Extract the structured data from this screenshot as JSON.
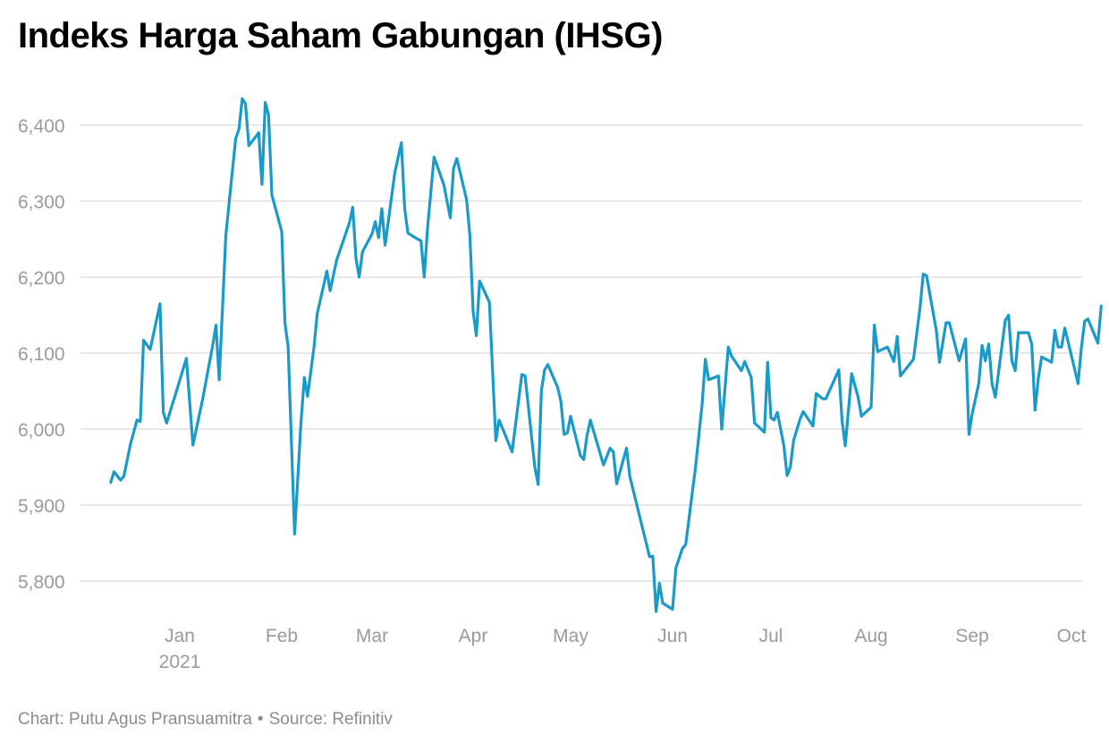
{
  "title": "Indeks Harga Saham Gabungan (IHSG)",
  "footer": {
    "chart_by": "Chart: Putu Agus Pransuamitra",
    "separator": "•",
    "source": "Source: Refinitiv"
  },
  "colors": {
    "line": "#1a9ac9",
    "grid": "#e0e0e0",
    "tick_text": "#9a9a9a"
  },
  "chart_data": {
    "type": "line",
    "title": "Indeks Harga Saham Gabungan (IHSG)",
    "xlabel": "",
    "ylabel": "",
    "ylim": [
      5755,
      6440
    ],
    "grid": true,
    "y_ticks": [
      5800,
      5900,
      6000,
      6100,
      6200,
      6300,
      6400
    ],
    "y_tick_labels": [
      "5,800",
      "5,900",
      "6,000",
      "6,100",
      "6,200",
      "6,300",
      "6,400"
    ],
    "x_ticks": [
      {
        "date": "2021-01-01",
        "label": "Jan",
        "sublabel": "2021"
      },
      {
        "date": "2021-02-01",
        "label": "Feb"
      },
      {
        "date": "2021-03-01",
        "label": "Mar"
      },
      {
        "date": "2021-04-01",
        "label": "Apr"
      },
      {
        "date": "2021-05-01",
        "label": "May"
      },
      {
        "date": "2021-06-01",
        "label": "Jun"
      },
      {
        "date": "2021-07-01",
        "label": "Jul"
      },
      {
        "date": "2021-08-01",
        "label": "Aug"
      },
      {
        "date": "2021-09-01",
        "label": "Sep"
      },
      {
        "date": "2021-10-01",
        "label": "Oct"
      }
    ],
    "series": [
      {
        "values": [
          [
            "2020-12-11",
            5930
          ],
          [
            "2020-12-12",
            5944
          ],
          [
            "2020-12-14",
            5933
          ],
          [
            "2020-12-15",
            5938
          ],
          [
            "2020-12-17",
            5980
          ],
          [
            "2020-12-19",
            6012
          ],
          [
            "2020-12-20",
            6010
          ],
          [
            "2020-12-21",
            6117
          ],
          [
            "2020-12-23",
            6105
          ],
          [
            "2020-12-24",
            6125
          ],
          [
            "2020-12-26",
            6165
          ],
          [
            "2020-12-27",
            6022
          ],
          [
            "2020-12-28",
            6008
          ],
          [
            "2020-12-31",
            6050
          ],
          [
            "2021-01-03",
            6093
          ],
          [
            "2021-01-05",
            5979
          ],
          [
            "2021-01-08",
            6040
          ],
          [
            "2021-01-11",
            6110
          ],
          [
            "2021-01-12",
            6137
          ],
          [
            "2021-01-13",
            6065
          ],
          [
            "2021-01-15",
            6255
          ],
          [
            "2021-01-18",
            6382
          ],
          [
            "2021-01-19",
            6395
          ],
          [
            "2021-01-20",
            6435
          ],
          [
            "2021-01-21",
            6428
          ],
          [
            "2021-01-22",
            6373
          ],
          [
            "2021-01-25",
            6390
          ],
          [
            "2021-01-26",
            6322
          ],
          [
            "2021-01-27",
            6430
          ],
          [
            "2021-01-28",
            6413
          ],
          [
            "2021-01-29",
            6308
          ],
          [
            "2021-02-01",
            6260
          ],
          [
            "2021-02-02",
            6140
          ],
          [
            "2021-02-03",
            6108
          ],
          [
            "2021-02-05",
            5862
          ],
          [
            "2021-02-07",
            6010
          ],
          [
            "2021-02-08",
            6068
          ],
          [
            "2021-02-09",
            6043
          ],
          [
            "2021-02-11",
            6108
          ],
          [
            "2021-02-12",
            6152
          ],
          [
            "2021-02-15",
            6208
          ],
          [
            "2021-02-16",
            6182
          ],
          [
            "2021-02-18",
            6222
          ],
          [
            "2021-02-22",
            6272
          ],
          [
            "2021-02-23",
            6292
          ],
          [
            "2021-02-24",
            6225
          ],
          [
            "2021-02-25",
            6200
          ],
          [
            "2021-02-26",
            6233
          ],
          [
            "2021-03-01",
            6257
          ],
          [
            "2021-03-02",
            6273
          ],
          [
            "2021-03-03",
            6252
          ],
          [
            "2021-03-04",
            6290
          ],
          [
            "2021-03-05",
            6242
          ],
          [
            "2021-03-08",
            6338
          ],
          [
            "2021-03-10",
            6377
          ],
          [
            "2021-03-11",
            6290
          ],
          [
            "2021-03-12",
            6258
          ],
          [
            "2021-03-15",
            6250
          ],
          [
            "2021-03-16",
            6248
          ],
          [
            "2021-03-17",
            6200
          ],
          [
            "2021-03-18",
            6264
          ],
          [
            "2021-03-20",
            6358
          ],
          [
            "2021-03-23",
            6322
          ],
          [
            "2021-03-24",
            6300
          ],
          [
            "2021-03-25",
            6278
          ],
          [
            "2021-03-26",
            6343
          ],
          [
            "2021-03-27",
            6356
          ],
          [
            "2021-03-30",
            6302
          ],
          [
            "2021-03-31",
            6255
          ],
          [
            "2021-04-01",
            6155
          ],
          [
            "2021-04-02",
            6123
          ],
          [
            "2021-04-03",
            6195
          ],
          [
            "2021-04-06",
            6167
          ],
          [
            "2021-04-08",
            5985
          ],
          [
            "2021-04-09",
            6012
          ],
          [
            "2021-04-13",
            5970
          ],
          [
            "2021-04-16",
            6072
          ],
          [
            "2021-04-17",
            6070
          ],
          [
            "2021-04-20",
            5950
          ],
          [
            "2021-04-21",
            5927
          ],
          [
            "2021-04-22",
            6050
          ],
          [
            "2021-04-23",
            6078
          ],
          [
            "2021-04-24",
            6085
          ],
          [
            "2021-04-27",
            6055
          ],
          [
            "2021-04-28",
            6037
          ],
          [
            "2021-04-29",
            5993
          ],
          [
            "2021-04-30",
            5995
          ],
          [
            "2021-05-01",
            6017
          ],
          [
            "2021-05-04",
            5965
          ],
          [
            "2021-05-05",
            5960
          ],
          [
            "2021-05-06",
            5992
          ],
          [
            "2021-05-07",
            6012
          ],
          [
            "2021-05-11",
            5953
          ],
          [
            "2021-05-13",
            5975
          ],
          [
            "2021-05-14",
            5970
          ],
          [
            "2021-05-15",
            5928
          ],
          [
            "2021-05-18",
            5975
          ],
          [
            "2021-05-19",
            5938
          ],
          [
            "2021-05-25",
            5832
          ],
          [
            "2021-05-26",
            5833
          ],
          [
            "2021-05-27",
            5760
          ],
          [
            "2021-05-28",
            5797
          ],
          [
            "2021-05-29",
            5771
          ],
          [
            "2021-06-01",
            5763
          ],
          [
            "2021-06-02",
            5817
          ],
          [
            "2021-06-04",
            5843
          ],
          [
            "2021-06-05",
            5848
          ],
          [
            "2021-06-08",
            5950
          ],
          [
            "2021-06-10",
            6032
          ],
          [
            "2021-06-11",
            6092
          ],
          [
            "2021-06-12",
            6065
          ],
          [
            "2021-06-15",
            6070
          ],
          [
            "2021-06-16",
            6000
          ],
          [
            "2021-06-18",
            6108
          ],
          [
            "2021-06-19",
            6096
          ],
          [
            "2021-06-22",
            6077
          ],
          [
            "2021-06-23",
            6089
          ],
          [
            "2021-06-25",
            6068
          ],
          [
            "2021-06-26",
            6008
          ],
          [
            "2021-06-29",
            5996
          ],
          [
            "2021-06-30",
            6088
          ],
          [
            "2021-07-01",
            6015
          ],
          [
            "2021-07-02",
            6012
          ],
          [
            "2021-07-03",
            6022
          ],
          [
            "2021-07-05",
            5978
          ],
          [
            "2021-07-06",
            5939
          ],
          [
            "2021-07-07",
            5950
          ],
          [
            "2021-07-08",
            5985
          ],
          [
            "2021-07-10",
            6013
          ],
          [
            "2021-07-11",
            6023
          ],
          [
            "2021-07-14",
            6004
          ],
          [
            "2021-07-15",
            6047
          ],
          [
            "2021-07-17",
            6040
          ],
          [
            "2021-07-18",
            6040
          ],
          [
            "2021-07-22",
            6078
          ],
          [
            "2021-07-23",
            6012
          ],
          [
            "2021-07-24",
            5978
          ],
          [
            "2021-07-26",
            6073
          ],
          [
            "2021-07-28",
            6042
          ],
          [
            "2021-07-29",
            6017
          ],
          [
            "2021-08-01",
            6029
          ],
          [
            "2021-08-02",
            6137
          ],
          [
            "2021-08-03",
            6102
          ],
          [
            "2021-08-06",
            6108
          ],
          [
            "2021-08-08",
            6089
          ],
          [
            "2021-08-09",
            6122
          ],
          [
            "2021-08-10",
            6070
          ],
          [
            "2021-08-14",
            6092
          ],
          [
            "2021-08-16",
            6160
          ],
          [
            "2021-08-17",
            6204
          ],
          [
            "2021-08-18",
            6202
          ],
          [
            "2021-08-21",
            6130
          ],
          [
            "2021-08-22",
            6088
          ],
          [
            "2021-08-24",
            6140
          ],
          [
            "2021-08-25",
            6140
          ],
          [
            "2021-08-28",
            6090
          ],
          [
            "2021-08-30",
            6119
          ],
          [
            "2021-08-31",
            5993
          ],
          [
            "2021-09-01",
            6020
          ],
          [
            "2021-09-03",
            6060
          ],
          [
            "2021-09-04",
            6110
          ],
          [
            "2021-09-05",
            6090
          ],
          [
            "2021-09-06",
            6112
          ],
          [
            "2021-09-07",
            6060
          ],
          [
            "2021-09-08",
            6042
          ],
          [
            "2021-09-11",
            6143
          ],
          [
            "2021-09-12",
            6150
          ],
          [
            "2021-09-13",
            6090
          ],
          [
            "2021-09-14",
            6077
          ],
          [
            "2021-09-15",
            6127
          ],
          [
            "2021-09-18",
            6127
          ],
          [
            "2021-09-19",
            6112
          ],
          [
            "2021-09-20",
            6025
          ],
          [
            "2021-09-21",
            6067
          ],
          [
            "2021-09-22",
            6095
          ],
          [
            "2021-09-25",
            6088
          ],
          [
            "2021-09-26",
            6130
          ],
          [
            "2021-09-27",
            6108
          ],
          [
            "2021-09-28",
            6108
          ],
          [
            "2021-09-29",
            6133
          ],
          [
            "2021-10-03",
            6060
          ],
          [
            "2021-10-04",
            6107
          ],
          [
            "2021-10-05",
            6142
          ],
          [
            "2021-10-06",
            6145
          ],
          [
            "2021-10-09",
            6113
          ],
          [
            "2021-10-10",
            6162
          ]
        ]
      }
    ]
  }
}
